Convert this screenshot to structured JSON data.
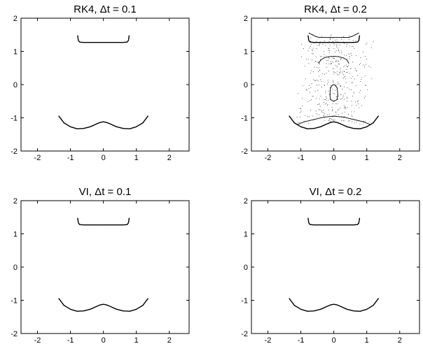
{
  "chart_data": [
    {
      "type": "scatter",
      "title": "RK4, Δt = 0.1",
      "xlim": [
        -2.5,
        2.6
      ],
      "ylim": [
        -2,
        2
      ],
      "xticks": [
        -2,
        -1,
        0,
        1,
        2
      ],
      "yticks": [
        -2,
        -1,
        0,
        1,
        2
      ],
      "xtick_labels": [
        "-2",
        "-1",
        "0",
        "1",
        "2"
      ],
      "ytick_labels": [
        "-2",
        "-1",
        "0",
        "1",
        "2"
      ],
      "grid": false,
      "series": [
        {
          "x": [
            -0.78,
            -0.76,
            -0.72,
            -0.6,
            -0.4,
            -0.2,
            0.0,
            0.2,
            0.4,
            0.6,
            0.72,
            0.76,
            0.78
          ],
          "y": [
            1.47,
            1.33,
            1.28,
            1.27,
            1.27,
            1.27,
            1.27,
            1.27,
            1.27,
            1.27,
            1.28,
            1.33,
            1.47
          ]
        },
        {
          "x": [
            -1.35,
            -1.2,
            -1.0,
            -0.8,
            -0.6,
            -0.4,
            -0.2,
            -0.1,
            0.0,
            0.1,
            0.2,
            0.4,
            0.6,
            0.8,
            1.0,
            1.2,
            1.35
          ],
          "y": [
            -0.95,
            -1.15,
            -1.27,
            -1.33,
            -1.32,
            -1.27,
            -1.18,
            -1.14,
            -1.12,
            -1.14,
            -1.18,
            -1.27,
            -1.32,
            -1.33,
            -1.27,
            -1.15,
            -0.95
          ]
        }
      ]
    },
    {
      "type": "scatter",
      "title": "RK4, Δt = 0.2",
      "xlim": [
        -2.5,
        2.6
      ],
      "ylim": [
        -2,
        2
      ],
      "xticks": [
        -2,
        -1,
        0,
        1,
        2
      ],
      "yticks": [
        -2,
        -1,
        0,
        1,
        2
      ],
      "xtick_labels": [
        "-2",
        "-1",
        "0",
        "1",
        "2"
      ],
      "ytick_labels": [
        "-2",
        "-1",
        "0",
        "1",
        "2"
      ],
      "grid": false,
      "series": [
        {
          "x": [
            -0.78,
            -0.76,
            -0.72,
            -0.6,
            -0.4,
            -0.2,
            0.0,
            0.2,
            0.4,
            0.6,
            0.72,
            0.76,
            0.78
          ],
          "y": [
            1.47,
            1.33,
            1.28,
            1.27,
            1.27,
            1.27,
            1.27,
            1.27,
            1.27,
            1.27,
            1.28,
            1.33,
            1.47
          ]
        },
        {
          "x": [
            -1.35,
            -1.2,
            -1.0,
            -0.8,
            -0.6,
            -0.4,
            -0.2,
            -0.1,
            0.0,
            0.1,
            0.2,
            0.4,
            0.6,
            0.8,
            1.0,
            1.2,
            1.35
          ],
          "y": [
            -0.95,
            -1.15,
            -1.27,
            -1.33,
            -1.32,
            -1.27,
            -1.18,
            -1.14,
            -1.12,
            -1.14,
            -1.18,
            -1.27,
            -1.32,
            -1.33,
            -1.27,
            -1.15,
            -0.95
          ]
        },
        {
          "x": [
            -1.1,
            -0.9,
            -0.6,
            -0.3,
            0.0,
            0.3,
            0.6,
            0.9,
            1.1
          ],
          "y": [
            -1.2,
            -1.12,
            -1.05,
            -0.98,
            -0.95,
            -0.98,
            -1.05,
            -1.12,
            -1.2
          ]
        },
        {
          "x": [
            -0.45,
            -0.4,
            -0.3,
            -0.15,
            0.0,
            0.15,
            0.3,
            0.4,
            0.45
          ],
          "y": [
            0.65,
            0.74,
            0.8,
            0.84,
            0.85,
            0.84,
            0.8,
            0.74,
            0.65
          ]
        },
        {
          "x": [
            -0.12,
            -0.1,
            -0.05,
            0.0,
            0.05,
            0.1,
            0.12,
            0.1,
            0.0,
            -0.1,
            -0.12
          ],
          "y": [
            -0.3,
            -0.1,
            -0.02,
            0.0,
            -0.02,
            -0.1,
            -0.3,
            -0.45,
            -0.5,
            -0.45,
            -0.3
          ]
        },
        {
          "x": [
            -0.75,
            -0.65,
            -0.55,
            -0.45,
            0.45,
            0.55,
            0.65,
            0.75
          ],
          "y": [
            1.55,
            1.5,
            1.45,
            1.42,
            1.42,
            1.45,
            1.5,
            1.55
          ]
        }
      ]
    },
    {
      "type": "scatter",
      "title": "VI, Δt = 0.1",
      "xlim": [
        -2.5,
        2.6
      ],
      "ylim": [
        -2,
        2
      ],
      "xticks": [
        -2,
        -1,
        0,
        1,
        2
      ],
      "yticks": [
        -2,
        -1,
        0,
        1,
        2
      ],
      "xtick_labels": [
        "-2",
        "-1",
        "0",
        "1",
        "2"
      ],
      "ytick_labels": [
        "-2",
        "-1",
        "0",
        "1",
        "2"
      ],
      "grid": false,
      "series": [
        {
          "x": [
            -0.78,
            -0.76,
            -0.72,
            -0.6,
            -0.4,
            -0.2,
            0.0,
            0.2,
            0.4,
            0.6,
            0.72,
            0.76,
            0.78
          ],
          "y": [
            1.47,
            1.33,
            1.28,
            1.27,
            1.27,
            1.27,
            1.27,
            1.27,
            1.27,
            1.27,
            1.28,
            1.33,
            1.47
          ]
        },
        {
          "x": [
            -1.35,
            -1.2,
            -1.0,
            -0.8,
            -0.6,
            -0.4,
            -0.2,
            -0.1,
            0.0,
            0.1,
            0.2,
            0.4,
            0.6,
            0.8,
            1.0,
            1.2,
            1.35
          ],
          "y": [
            -0.95,
            -1.15,
            -1.27,
            -1.33,
            -1.32,
            -1.27,
            -1.18,
            -1.14,
            -1.12,
            -1.14,
            -1.18,
            -1.27,
            -1.32,
            -1.33,
            -1.27,
            -1.15,
            -0.95
          ]
        }
      ]
    },
    {
      "type": "scatter",
      "title": "VI, Δt = 0.2",
      "xlim": [
        -2.5,
        2.6
      ],
      "ylim": [
        -2,
        2
      ],
      "xticks": [
        -2,
        -1,
        0,
        1,
        2
      ],
      "yticks": [
        -2,
        -1,
        0,
        1,
        2
      ],
      "xtick_labels": [
        "-2",
        "-1",
        "0",
        "1",
        "2"
      ],
      "ytick_labels": [
        "-2",
        "-1",
        "0",
        "1",
        "2"
      ],
      "grid": false,
      "series": [
        {
          "x": [
            -0.78,
            -0.76,
            -0.72,
            -0.6,
            -0.4,
            -0.2,
            0.0,
            0.2,
            0.4,
            0.6,
            0.72,
            0.76,
            0.78
          ],
          "y": [
            1.47,
            1.33,
            1.28,
            1.27,
            1.27,
            1.27,
            1.27,
            1.27,
            1.27,
            1.27,
            1.28,
            1.33,
            1.47
          ]
        },
        {
          "x": [
            -1.35,
            -1.2,
            -1.0,
            -0.8,
            -0.6,
            -0.4,
            -0.2,
            -0.1,
            0.0,
            0.1,
            0.2,
            0.4,
            0.6,
            0.8,
            1.0,
            1.2,
            1.35
          ],
          "y": [
            -0.95,
            -1.15,
            -1.27,
            -1.33,
            -1.32,
            -1.27,
            -1.18,
            -1.14,
            -1.12,
            -1.14,
            -1.18,
            -1.27,
            -1.32,
            -1.33,
            -1.27,
            -1.15,
            -0.95
          ]
        }
      ]
    }
  ]
}
